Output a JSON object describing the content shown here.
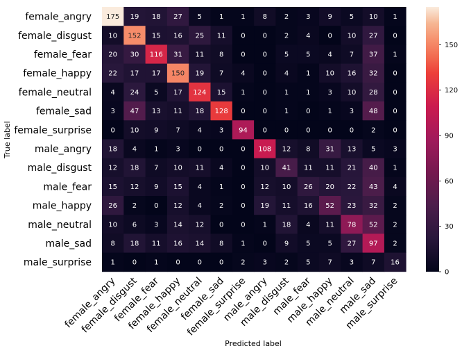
{
  "chart_data": {
    "type": "heatmap",
    "title": "",
    "xlabel": "Predicted label",
    "ylabel": "True label",
    "row_labels": [
      "female_angry",
      "female_disgust",
      "female_fear",
      "female_happy",
      "female_neutral",
      "female_sad",
      "female_surprise",
      "male_angry",
      "male_disgust",
      "male_fear",
      "male_happy",
      "male_neutral",
      "male_sad",
      "male_surprise"
    ],
    "col_labels": [
      "female_angry",
      "female_disgust",
      "female_fear",
      "female_happy",
      "female_neutral",
      "female_sad",
      "female_surprise",
      "male_angry",
      "male_disgust",
      "male_fear",
      "male_happy",
      "male_neutral",
      "male_sad",
      "male_surprise"
    ],
    "values": [
      [
        175,
        19,
        18,
        27,
        5,
        1,
        1,
        8,
        2,
        3,
        9,
        5,
        10,
        1
      ],
      [
        10,
        152,
        15,
        16,
        25,
        11,
        0,
        0,
        2,
        4,
        0,
        10,
        27,
        0
      ],
      [
        20,
        30,
        116,
        31,
        11,
        8,
        0,
        0,
        5,
        5,
        4,
        7,
        37,
        1
      ],
      [
        22,
        17,
        17,
        150,
        19,
        7,
        4,
        0,
        4,
        1,
        10,
        16,
        32,
        0
      ],
      [
        4,
        24,
        5,
        17,
        124,
        15,
        1,
        0,
        1,
        1,
        3,
        10,
        28,
        0
      ],
      [
        3,
        47,
        13,
        11,
        18,
        128,
        0,
        0,
        1,
        0,
        1,
        3,
        48,
        0
      ],
      [
        0,
        10,
        9,
        7,
        4,
        3,
        94,
        0,
        0,
        0,
        0,
        0,
        2,
        0
      ],
      [
        18,
        4,
        1,
        3,
        0,
        0,
        0,
        108,
        12,
        8,
        31,
        13,
        5,
        3
      ],
      [
        12,
        18,
        7,
        10,
        11,
        4,
        0,
        10,
        41,
        11,
        11,
        21,
        40,
        1
      ],
      [
        15,
        12,
        9,
        15,
        4,
        1,
        0,
        12,
        10,
        26,
        20,
        22,
        43,
        4
      ],
      [
        26,
        2,
        0,
        12,
        4,
        2,
        0,
        19,
        11,
        16,
        52,
        23,
        32,
        2
      ],
      [
        10,
        6,
        3,
        14,
        12,
        0,
        0,
        1,
        18,
        4,
        11,
        78,
        52,
        2
      ],
      [
        8,
        18,
        11,
        16,
        14,
        8,
        1,
        0,
        9,
        5,
        5,
        27,
        97,
        2
      ],
      [
        1,
        0,
        1,
        0,
        0,
        0,
        2,
        3,
        2,
        5,
        7,
        3,
        7,
        16
      ]
    ],
    "vmin": 0,
    "vmax": 175,
    "colormap": "rocket",
    "colorbar_ticks": [
      0,
      30,
      60,
      90,
      120,
      150
    ]
  }
}
